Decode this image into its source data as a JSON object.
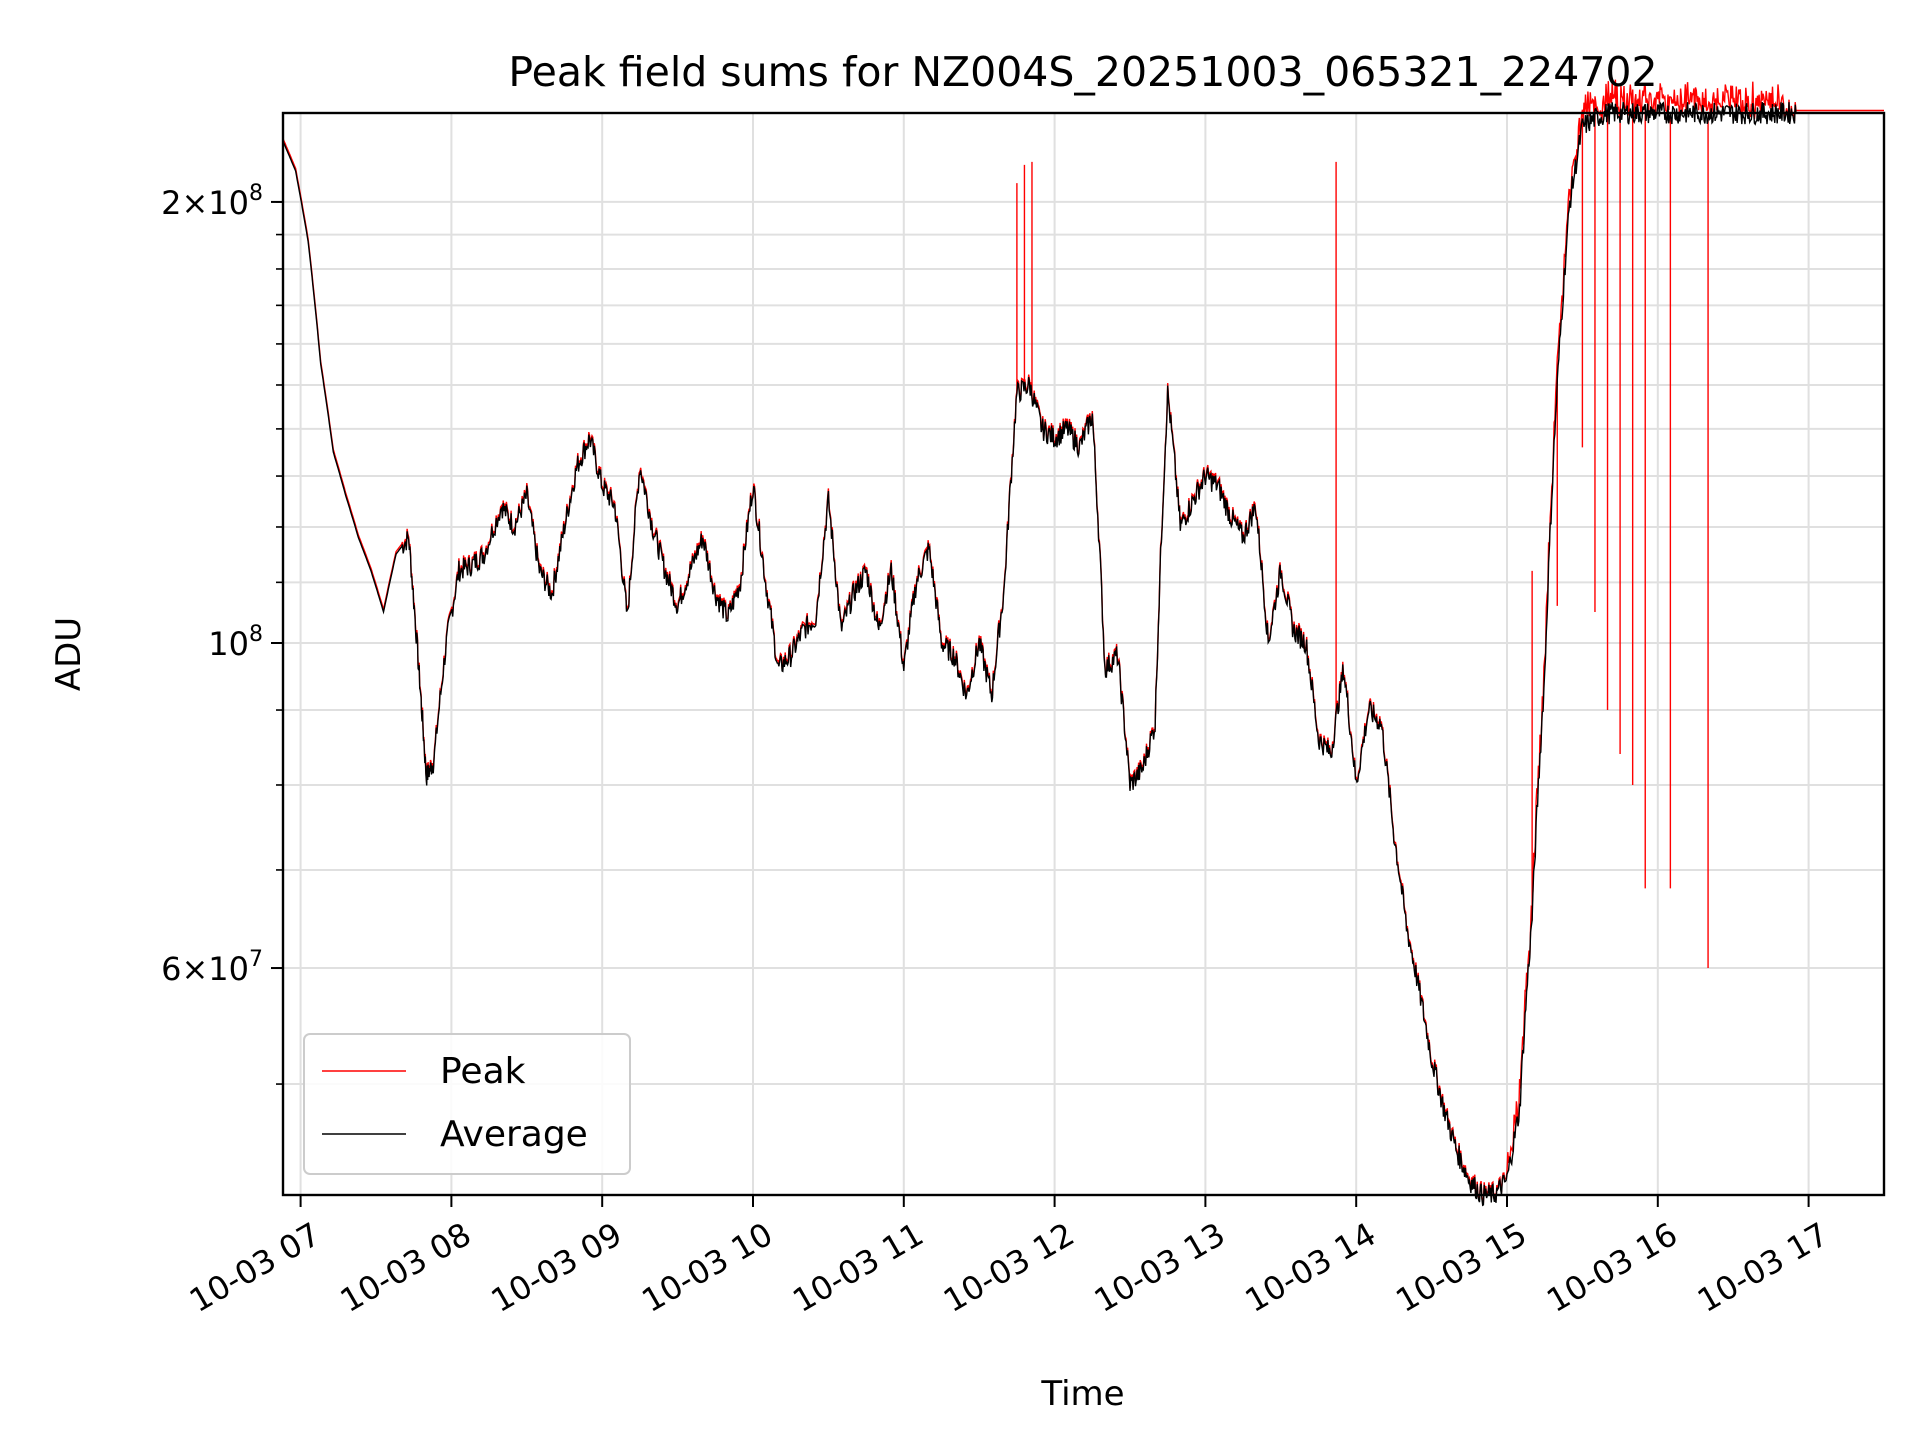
{
  "chart_data": {
    "type": "line",
    "title": "Peak field sums for NZ004S_20251003_065321_224702",
    "xlabel": "Time",
    "ylabel": "ADU",
    "x_scale": "time",
    "y_scale": "log",
    "xlim": [
      "2025-10-03 06:53",
      "2025-10-03 17:30"
    ],
    "ylim": [
      42000000,
      230000000
    ],
    "x_ticks": [
      "10-03 07",
      "10-03 08",
      "10-03 09",
      "10-03 10",
      "10-03 11",
      "10-03 12",
      "10-03 13",
      "10-03 14",
      "10-03 15",
      "10-03 16",
      "10-03 17"
    ],
    "y_ticks": [
      {
        "value": 200000000,
        "mantissa": "2",
        "exp": "8"
      },
      {
        "value": 100000000,
        "mantissa": "",
        "exp": "8"
      },
      {
        "value": 60000000,
        "mantissa": "6",
        "exp": "7"
      }
    ],
    "grid": true,
    "legend": {
      "position": "lower-left",
      "entries": [
        "Peak",
        "Average"
      ]
    },
    "series": [
      {
        "name": "Average",
        "color": "#000000",
        "x": [
          "06:53",
          "06:58",
          "07:03",
          "07:08",
          "07:13",
          "07:18",
          "07:23",
          "07:28",
          "07:33",
          "07:38",
          "07:43",
          "07:47",
          "07:50",
          "07:53",
          "07:58",
          "08:03",
          "08:08",
          "08:13",
          "08:20",
          "08:25",
          "08:30",
          "08:35",
          "08:40",
          "08:45",
          "08:50",
          "08:55",
          "09:00",
          "09:05",
          "09:10",
          "09:15",
          "09:20",
          "09:25",
          "09:30",
          "09:35",
          "09:40",
          "09:45",
          "09:50",
          "09:55",
          "10:00",
          "10:05",
          "10:10",
          "10:15",
          "10:20",
          "10:25",
          "10:30",
          "10:35",
          "10:40",
          "10:45",
          "10:50",
          "10:55",
          "11:00",
          "11:05",
          "11:10",
          "11:15",
          "11:20",
          "11:25",
          "11:30",
          "11:35",
          "11:40",
          "11:45",
          "11:50",
          "11:55",
          "12:00",
          "12:05",
          "12:10",
          "12:15",
          "12:20",
          "12:25",
          "12:30",
          "12:35",
          "12:40",
          "12:45",
          "12:50",
          "12:55",
          "13:00",
          "13:05",
          "13:10",
          "13:15",
          "13:20",
          "13:25",
          "13:30",
          "13:35",
          "13:40",
          "13:45",
          "13:50",
          "13:55",
          "14:00",
          "14:05",
          "14:10",
          "14:15",
          "14:20",
          "14:25",
          "14:30",
          "14:35",
          "14:40",
          "14:45",
          "14:50",
          "14:55",
          "15:00",
          "15:05",
          "15:10",
          "15:15",
          "15:20",
          "15:25",
          "15:30",
          "15:35",
          "15:40",
          "15:45",
          "15:50",
          "15:55",
          "16:00",
          "16:05",
          "16:10",
          "16:15",
          "16:20",
          "16:25",
          "16:30",
          "16:35",
          "16:40",
          "16:45",
          "16:50",
          "16:55",
          "17:00",
          "17:05",
          "17:10",
          "17:15",
          "17:20",
          "17:25",
          "17:30"
        ],
        "y": [
          220,
          210,
          188,
          155,
          135,
          126,
          118,
          112,
          105,
          115,
          118,
          96,
          81,
          83,
          100,
          112,
          113,
          115,
          124,
          120,
          126,
          112,
          108,
          120,
          132,
          138,
          128,
          124,
          104,
          132,
          120,
          112,
          106,
          112,
          118,
          108,
          104,
          110,
          128,
          110,
          96,
          98,
          102,
          104,
          125,
          102,
          108,
          112,
          102,
          112,
          96,
          110,
          116,
          100,
          98,
          92,
          100,
          92,
          109,
          148,
          150,
          140,
          138,
          140,
          136,
          143,
          96,
          98,
          80,
          82,
          88,
          148,
          120,
          125,
          130,
          128,
          122,
          118,
          124,
          100,
          112,
          102,
          100,
          86,
          84,
          96,
          80,
          90,
          88,
          74,
          64,
          58,
          52,
          48,
          45,
          43,
          42,
          42,
          43,
          48,
          65,
          95,
          150,
          200,
          225,
          228,
          230,
          230,
          230,
          230,
          230,
          230,
          230,
          230,
          230,
          230,
          230,
          230,
          230,
          230,
          230,
          230,
          230,
          230,
          230,
          230,
          230,
          230,
          230
        ]
      },
      {
        "name": "Peak",
        "color": "#ff0000",
        "x": [
          "11:45",
          "11:48",
          "11:51",
          "13:52",
          "15:10",
          "15:20",
          "15:30",
          "15:35",
          "15:40",
          "15:45",
          "15:50",
          "15:55",
          "16:05",
          "16:20"
        ],
        "y": [
          206,
          212,
          213,
          213,
          112,
          106,
          136,
          105,
          90,
          84,
          80,
          68,
          68,
          60
        ]
      }
    ]
  }
}
